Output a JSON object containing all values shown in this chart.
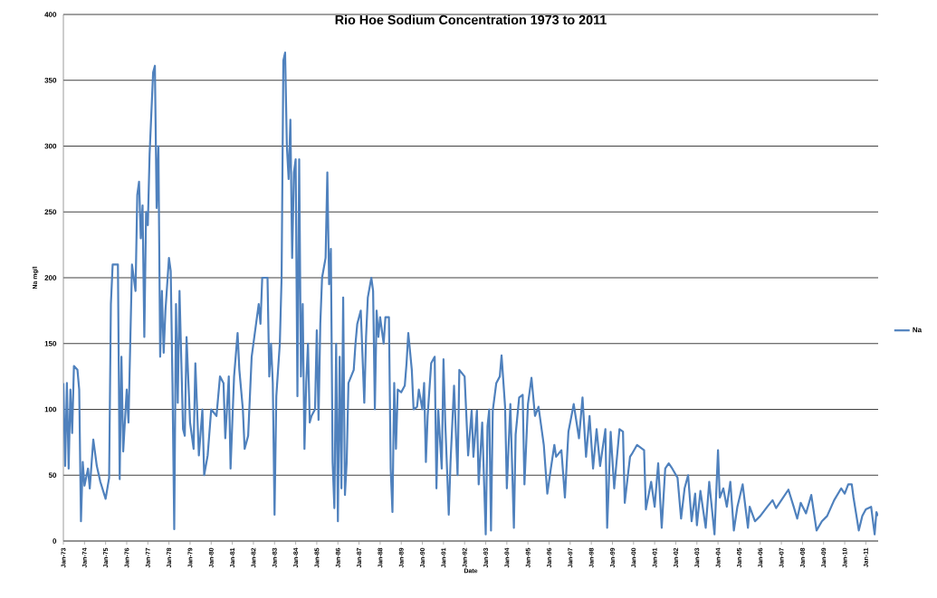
{
  "chart_data": {
    "type": "line",
    "title": "Rio Hoe Sodium Concentration 1973 to 2011",
    "xlabel": "Date",
    "ylabel": "Na mg/l",
    "x": [
      "1973-01",
      "1973-02",
      "1973-03",
      "1973-04",
      "1973-05",
      "1973-06",
      "1973-07",
      "1973-09",
      "1973-10",
      "1973-11",
      "1973-12",
      "1974-01",
      "1974-03",
      "1974-04",
      "1974-06",
      "1974-08",
      "1974-10",
      "1975-01",
      "1975-03",
      "1975-04",
      "1975-05",
      "1975-08",
      "1975-09",
      "1975-10",
      "1975-11",
      "1976-01",
      "1976-02",
      "1976-03",
      "1976-04",
      "1976-06",
      "1976-07",
      "1976-08",
      "1976-09",
      "1976-10",
      "1976-11",
      "1976-12",
      "1977-01",
      "1977-02",
      "1977-04",
      "1977-05",
      "1977-06",
      "1977-07",
      "1977-08",
      "1977-09",
      "1977-10",
      "1977-11",
      "1978-01",
      "1978-02",
      "1978-03",
      "1978-04",
      "1978-05",
      "1978-06",
      "1978-07",
      "1978-09",
      "1978-10",
      "1978-11",
      "1979-01",
      "1979-03",
      "1979-04",
      "1979-06",
      "1979-08",
      "1979-09",
      "1979-11",
      "1980-01",
      "1980-04",
      "1980-06",
      "1980-08",
      "1980-09",
      "1980-11",
      "1980-12",
      "1981-02",
      "1981-04",
      "1981-05",
      "1981-07",
      "1981-08",
      "1981-10",
      "1981-12",
      "1982-02",
      "1982-04",
      "1982-05",
      "1982-06",
      "1982-09",
      "1982-10",
      "1982-11",
      "1982-12",
      "1983-01",
      "1983-02",
      "1983-04",
      "1983-05",
      "1983-06",
      "1983-07",
      "1983-08",
      "1983-09",
      "1983-10",
      "1983-11",
      "1983-12",
      "1984-01",
      "1984-02",
      "1984-03",
      "1984-04",
      "1984-05",
      "1984-06",
      "1984-07",
      "1984-08",
      "1984-09",
      "1984-10",
      "1984-12",
      "1985-01",
      "1985-02",
      "1985-03",
      "1985-04",
      "1985-06",
      "1985-07",
      "1985-08",
      "1985-09",
      "1985-10",
      "1985-11",
      "1985-12",
      "1986-01",
      "1986-02",
      "1986-03",
      "1986-04",
      "1986-05",
      "1986-06",
      "1986-07",
      "1986-10",
      "1986-11",
      "1986-12",
      "1987-02",
      "1987-04",
      "1987-05",
      "1987-06",
      "1987-08",
      "1987-09",
      "1987-10",
      "1987-11",
      "1987-12",
      "1988-01",
      "1988-03",
      "1988-04",
      "1988-06",
      "1988-07",
      "1988-08",
      "1988-09",
      "1988-10",
      "1988-11",
      "1989-01",
      "1989-03",
      "1989-04",
      "1989-05",
      "1989-07",
      "1989-08",
      "1989-10",
      "1989-11",
      "1990-01",
      "1990-02",
      "1990-03",
      "1990-04",
      "1990-06",
      "1990-08",
      "1990-09",
      "1990-10",
      "1990-12",
      "1991-01",
      "1991-02",
      "1991-04",
      "1991-05",
      "1991-07",
      "1991-09",
      "1991-10",
      "1992-01",
      "1992-03",
      "1992-05",
      "1992-06",
      "1992-08",
      "1992-09",
      "1992-11",
      "1993-01",
      "1993-02",
      "1993-03",
      "1993-04",
      "1993-05",
      "1993-07",
      "1993-09",
      "1993-10",
      "1993-12",
      "1994-01",
      "1994-03",
      "1994-05",
      "1994-06",
      "1994-08",
      "1994-10",
      "1994-11",
      "1995-01",
      "1995-03",
      "1995-05",
      "1995-07",
      "1995-10",
      "1995-12",
      "1996-02",
      "1996-04",
      "1996-05",
      "1996-08",
      "1996-10",
      "1996-12",
      "1997-03",
      "1997-06",
      "1997-08",
      "1997-10",
      "1997-12",
      "1998-02",
      "1998-04",
      "1998-06",
      "1998-09",
      "1998-10",
      "1998-12",
      "1999-02",
      "1999-05",
      "1999-07",
      "1999-08",
      "1999-11",
      "1999-12",
      "2000-03",
      "2000-07",
      "2000-08",
      "2000-11",
      "2001-01",
      "2001-03",
      "2001-05",
      "2001-07",
      "2001-09",
      "2001-11",
      "2002-02",
      "2002-04",
      "2002-06",
      "2002-08",
      "2002-10",
      "2002-12",
      "2003-01",
      "2003-03",
      "2003-06",
      "2003-08",
      "2003-11",
      "2004-01",
      "2004-02",
      "2004-04",
      "2004-06",
      "2004-08",
      "2004-10",
      "2004-12",
      "2005-03",
      "2005-06",
      "2005-07",
      "2005-10",
      "2006-01",
      "2006-05",
      "2006-08",
      "2006-10",
      "2007-01",
      "2007-05",
      "2007-08",
      "2007-10",
      "2007-12",
      "2008-03",
      "2008-06",
      "2008-09",
      "2008-12",
      "2009-03",
      "2009-07",
      "2009-11",
      "2010-01",
      "2010-03",
      "2010-05",
      "2010-06",
      "2010-09",
      "2010-11",
      "2011-01",
      "2011-04",
      "2011-06",
      "2011-07",
      "2011-08"
    ],
    "series": [
      {
        "name": "Na",
        "color": "#4f81bd",
        "values": [
          120,
          57,
          120,
          55,
          115,
          82,
          133,
          130,
          115,
          15,
          60,
          42,
          55,
          40,
          77,
          57,
          45,
          32,
          48,
          180,
          210,
          210,
          47,
          140,
          68,
          115,
          90,
          150,
          210,
          190,
          263,
          273,
          230,
          255,
          155,
          250,
          240,
          294,
          356,
          361,
          253,
          300,
          140,
          190,
          143,
          175,
          215,
          205,
          120,
          9,
          180,
          105,
          190,
          85,
          80,
          155,
          90,
          70,
          135,
          65,
          100,
          50,
          65,
          100,
          95,
          125,
          120,
          78,
          125,
          55,
          125,
          158,
          130,
          100,
          70,
          80,
          140,
          160,
          180,
          165,
          200,
          200,
          125,
          150,
          120,
          20,
          110,
          150,
          200,
          365,
          371,
          300,
          275,
          320,
          215,
          280,
          290,
          110,
          290,
          125,
          180,
          70,
          120,
          150,
          90,
          95,
          100,
          160,
          92,
          165,
          200,
          215,
          280,
          195,
          222,
          60,
          25,
          150,
          15,
          140,
          40,
          185,
          35,
          60,
          120,
          130,
          150,
          165,
          175,
          105,
          155,
          185,
          200,
          190,
          100,
          175,
          155,
          170,
          150,
          170,
          170,
          55,
          22,
          120,
          70,
          115,
          113,
          118,
          135,
          158,
          130,
          100,
          102,
          115,
          100,
          120,
          60,
          95,
          135,
          140,
          40,
          100,
          55,
          138,
          90,
          20,
          60,
          118,
          50,
          130,
          125,
          65,
          99,
          64,
          99,
          43,
          90,
          5,
          87,
          100,
          8,
          99,
          120,
          125,
          141,
          102,
          40,
          104,
          10,
          81,
          109,
          111,
          43,
          104,
          124,
          95,
          102,
          73,
          36,
          55,
          73,
          64,
          69,
          33,
          83,
          104,
          78,
          109,
          64,
          95,
          55,
          85,
          57,
          85,
          10,
          83,
          40,
          85,
          83,
          29,
          64,
          66,
          73,
          69,
          24,
          45,
          26,
          59,
          10,
          55,
          59,
          55,
          48,
          17,
          40,
          50,
          15,
          36,
          12,
          38,
          10,
          45,
          5,
          69,
          33,
          40,
          26,
          45,
          8,
          26,
          43,
          10,
          26,
          15,
          19,
          26,
          31,
          25,
          31,
          39,
          26,
          17,
          29,
          21,
          35,
          8,
          15,
          19,
          31,
          40,
          36,
          43,
          43,
          33,
          8,
          19,
          24,
          26,
          5,
          22,
          19
        ]
      }
    ],
    "xlim": [
      "1973-01",
      "2011-08"
    ],
    "xticks": [
      {
        "value": "1973-01",
        "label": "Jan-73"
      },
      {
        "value": "1974-01",
        "label": "Jan-74"
      },
      {
        "value": "1975-01",
        "label": "Jan-75"
      },
      {
        "value": "1976-01",
        "label": "Jan-76"
      },
      {
        "value": "1977-01",
        "label": "Jan-77"
      },
      {
        "value": "1978-01",
        "label": "Jan-78"
      },
      {
        "value": "1979-01",
        "label": "Jan-79"
      },
      {
        "value": "1980-01",
        "label": "Jan-80"
      },
      {
        "value": "1981-01",
        "label": "Jan-81"
      },
      {
        "value": "1982-01",
        "label": "Jan-82"
      },
      {
        "value": "1983-01",
        "label": "Jan-83"
      },
      {
        "value": "1984-01",
        "label": "Jan-84"
      },
      {
        "value": "1985-01",
        "label": "Jan-85"
      },
      {
        "value": "1986-01",
        "label": "Jan-86"
      },
      {
        "value": "1987-01",
        "label": "Jan-87"
      },
      {
        "value": "1988-01",
        "label": "Jan-88"
      },
      {
        "value": "1989-01",
        "label": "Jan-89"
      },
      {
        "value": "1990-01",
        "label": "Jan-90"
      },
      {
        "value": "1991-01",
        "label": "Jan-91"
      },
      {
        "value": "1992-01",
        "label": "Jan-92"
      },
      {
        "value": "1993-01",
        "label": "Jan-93"
      },
      {
        "value": "1994-01",
        "label": "Jan-94"
      },
      {
        "value": "1995-01",
        "label": "Jan-95"
      },
      {
        "value": "1996-01",
        "label": "Jan-96"
      },
      {
        "value": "1997-01",
        "label": "Jan-97"
      },
      {
        "value": "1998-01",
        "label": "Jan-98"
      },
      {
        "value": "1999-01",
        "label": "Jan-99"
      },
      {
        "value": "2000-01",
        "label": "Jan-00"
      },
      {
        "value": "2001-01",
        "label": "Jan-01"
      },
      {
        "value": "2002-01",
        "label": "Jan-02"
      },
      {
        "value": "2003-01",
        "label": "Jan-03"
      },
      {
        "value": "2004-01",
        "label": "Jan-04"
      },
      {
        "value": "2005-01",
        "label": "Jan-05"
      },
      {
        "value": "2006-01",
        "label": "Jan-06"
      },
      {
        "value": "2007-01",
        "label": "Jan-07"
      },
      {
        "value": "2008-01",
        "label": "Jan-08"
      },
      {
        "value": "2009-01",
        "label": "Jan-09"
      },
      {
        "value": "2010-01",
        "label": "Jan-10"
      },
      {
        "value": "2011-01",
        "label": "Jan-11"
      }
    ],
    "ylim": [
      0,
      400
    ],
    "yticks": [
      0,
      50,
      100,
      150,
      200,
      250,
      300,
      350,
      400
    ],
    "grid": "y",
    "legend": "right",
    "marker": "none",
    "line_style": "solid"
  }
}
